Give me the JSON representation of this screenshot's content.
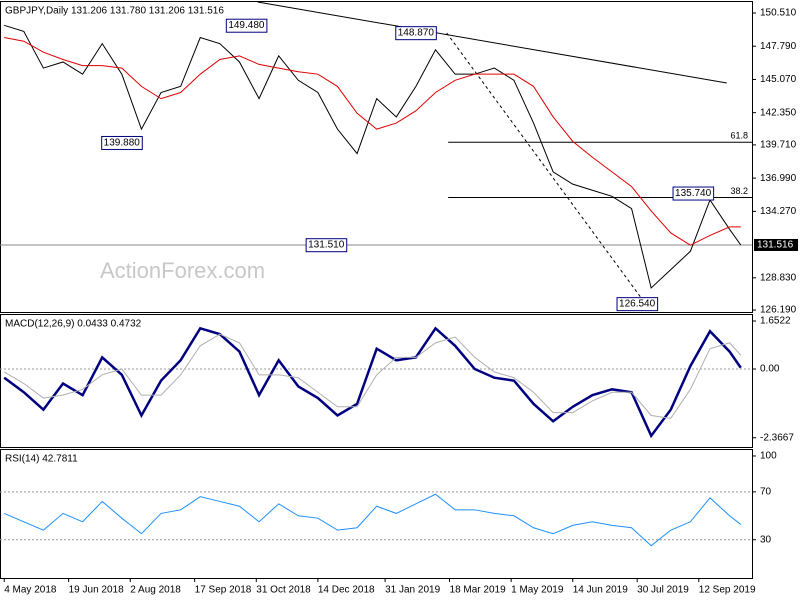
{
  "chart_data": [
    {
      "type": "line",
      "title": "GBPJPY,Daily  131.206 131.780 131.206 131.516",
      "watermark": "ActionForex.com",
      "x": [
        0,
        14,
        28,
        42,
        56,
        70,
        84,
        98,
        112,
        126,
        140,
        154,
        168,
        182,
        196,
        210,
        224,
        238,
        252,
        266,
        280,
        294,
        308,
        322,
        336,
        350,
        364,
        378,
        392,
        406,
        420,
        434,
        448,
        462,
        476,
        490,
        504,
        518,
        526
      ],
      "series": [
        {
          "name": "GBPJPY",
          "color": "#000000",
          "values": [
            149.5,
            149.0,
            146.0,
            146.5,
            145.5,
            148.0,
            145.5,
            141.0,
            144.0,
            144.5,
            148.5,
            148.0,
            146.5,
            143.5,
            147.0,
            145.0,
            144.0,
            141.0,
            139.0,
            143.5,
            142.0,
            144.5,
            147.5,
            145.5,
            145.5,
            146.0,
            145.0,
            141.5,
            137.5,
            136.5,
            136.0,
            135.5,
            134.5,
            128.0,
            129.5,
            131.0,
            135.2,
            132.8,
            131.516
          ]
        },
        {
          "name": "MA",
          "color": "#e00000",
          "values": [
            148.5,
            148.2,
            147.3,
            146.7,
            146.2,
            146.2,
            146.0,
            144.5,
            143.5,
            144.0,
            145.5,
            146.7,
            147.0,
            146.3,
            146.0,
            145.7,
            145.5,
            144.5,
            142.3,
            141.0,
            141.5,
            142.5,
            144.0,
            145.0,
            145.5,
            145.5,
            145.5,
            144.5,
            142.0,
            140.0,
            138.7,
            137.5,
            136.3,
            134.3,
            132.5,
            131.5,
            132.3,
            133.0,
            133.0
          ]
        }
      ],
      "annotations": [
        {
          "x": 188,
          "value": 149.48,
          "label": "149.480"
        },
        {
          "x": 99,
          "value": 139.88,
          "label": "139.880"
        },
        {
          "x": 309,
          "value": 148.87,
          "label": "148.870"
        },
        {
          "x": 245,
          "value": 131.51,
          "label": "131.510"
        },
        {
          "x": 507,
          "value": 135.74,
          "label": "135.740"
        },
        {
          "x": 467,
          "value": 126.54,
          "label": "126.540"
        }
      ],
      "trendline": {
        "x": [
          181,
          516
        ],
        "values": [
          151.41,
          144.78
        ]
      },
      "retracement_path": {
        "x": [
          316,
          459
        ],
        "values": [
          148.87,
          126.54
        ]
      },
      "fib_levels": [
        {
          "label": "61.8",
          "value": 139.93,
          "x": 317
        },
        {
          "label": "38.2",
          "value": 135.4,
          "x": 317
        }
      ],
      "last": 131.516,
      "xlim": [
        -3,
        534
      ],
      "ylim": [
        126.03,
        151.41
      ],
      "yticks": [
        {
          "value": 150.51,
          "label": "150.510"
        },
        {
          "value": 147.79,
          "label": "147.790"
        },
        {
          "value": 145.07,
          "label": "145.070"
        },
        {
          "value": 142.35,
          "label": "142.350"
        },
        {
          "value": 139.71,
          "label": "139.710"
        },
        {
          "value": 136.99,
          "label": "136.990"
        },
        {
          "value": 134.27,
          "label": "134.270"
        },
        {
          "value": 128.83,
          "label": "128.830"
        },
        {
          "value": 126.19,
          "label": "126.190"
        }
      ],
      "xticks": [
        {
          "value": 0,
          "label": "4 May 2018"
        },
        {
          "value": 46,
          "label": "19 Jun 2018"
        },
        {
          "value": 90,
          "label": "2 Aug 2018"
        },
        {
          "value": 136,
          "label": "17 Sep 2018"
        },
        {
          "value": 180,
          "label": "31 Oct 2018"
        },
        {
          "value": 224,
          "label": "14 Dec 2018"
        },
        {
          "value": 272,
          "label": "31 Jan 2019"
        },
        {
          "value": 318,
          "label": "18 Mar 2019"
        },
        {
          "value": 362,
          "label": "1 May 2019"
        },
        {
          "value": 406,
          "label": "14 Jun 2019"
        },
        {
          "value": 452,
          "label": "30 Jul 2019"
        },
        {
          "value": 496,
          "label": "12 Sep 2019"
        }
      ]
    },
    {
      "type": "line",
      "title": "MACD(12,26,9) 0.0433 0.4732",
      "x": [
        0,
        14,
        28,
        42,
        56,
        70,
        84,
        98,
        112,
        126,
        140,
        154,
        168,
        182,
        196,
        210,
        224,
        238,
        252,
        266,
        280,
        294,
        308,
        322,
        336,
        350,
        364,
        378,
        392,
        406,
        420,
        434,
        448,
        462,
        476,
        490,
        504,
        518,
        526
      ],
      "series": [
        {
          "name": "MACD",
          "color": "#000080",
          "width": 2.5,
          "values": [
            -0.3,
            -0.8,
            -1.4,
            -0.5,
            -0.9,
            0.4,
            -0.2,
            -1.6,
            -0.4,
            0.3,
            1.4,
            1.2,
            0.6,
            -0.9,
            0.3,
            -0.6,
            -1.0,
            -1.6,
            -1.2,
            0.7,
            0.3,
            0.4,
            1.4,
            0.8,
            0.0,
            -0.3,
            -0.4,
            -1.2,
            -1.8,
            -1.3,
            -0.9,
            -0.7,
            -0.8,
            -2.3,
            -1.4,
            0.1,
            1.3,
            0.6,
            0.0433
          ]
        },
        {
          "name": "Signal",
          "color": "#b0b0b0",
          "width": 1,
          "values": [
            -0.1,
            -0.5,
            -1.0,
            -0.9,
            -0.7,
            -0.2,
            0.0,
            -0.9,
            -0.9,
            -0.2,
            0.8,
            1.2,
            0.9,
            -0.2,
            -0.2,
            -0.3,
            -0.8,
            -1.3,
            -1.3,
            -0.2,
            0.4,
            0.4,
            0.9,
            1.1,
            0.4,
            -0.1,
            -0.3,
            -0.8,
            -1.5,
            -1.5,
            -1.1,
            -0.8,
            -0.8,
            -1.6,
            -1.7,
            -0.7,
            0.7,
            0.9,
            0.4732
          ]
        }
      ],
      "xlim": [
        -3,
        534
      ],
      "ylim": [
        -2.685,
        1.859
      ],
      "yticks": [
        1.6522,
        {
          "value": 0,
          "label": "0.00"
        },
        -2.3667
      ],
      "dotted_levels": [
        0
      ]
    },
    {
      "type": "line",
      "title": "RSI(14) 42.7811",
      "x": [
        0,
        14,
        28,
        42,
        56,
        70,
        84,
        98,
        112,
        126,
        140,
        154,
        168,
        182,
        196,
        210,
        224,
        238,
        252,
        266,
        280,
        294,
        308,
        322,
        336,
        350,
        364,
        378,
        392,
        406,
        420,
        434,
        448,
        462,
        476,
        490,
        504,
        518,
        526
      ],
      "series": [
        {
          "name": "RSI",
          "color": "#1e90ff",
          "width": 1,
          "values": [
            52,
            45,
            38,
            52,
            45,
            62,
            48,
            35,
            52,
            55,
            66,
            62,
            58,
            45,
            60,
            50,
            48,
            38,
            40,
            58,
            52,
            60,
            68,
            55,
            55,
            52,
            50,
            40,
            35,
            42,
            45,
            42,
            40,
            25,
            38,
            45,
            65,
            50,
            42.7811
          ]
        }
      ],
      "xlim": [
        -3,
        534
      ],
      "ylim": [
        -2,
        105
      ],
      "yticks": [
        100,
        70,
        30
      ],
      "dotted_levels": [
        70,
        30
      ]
    }
  ]
}
